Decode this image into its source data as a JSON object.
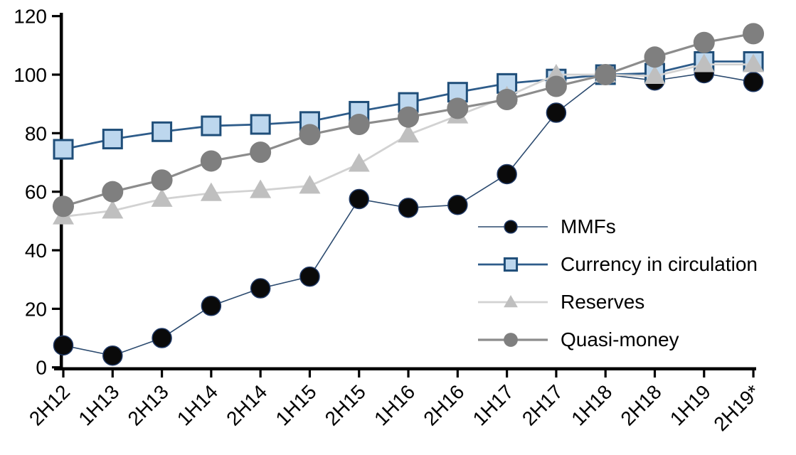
{
  "chart_data": {
    "type": "line",
    "title": "",
    "xlabel": "",
    "ylabel": "",
    "categories": [
      "2H12",
      "1H13",
      "2H13",
      "1H14",
      "2H14",
      "1H15",
      "2H15",
      "1H16",
      "2H16",
      "1H17",
      "2H17",
      "1H18",
      "2H18",
      "1H19",
      "2H19*"
    ],
    "series": [
      {
        "name": "MMFs",
        "marker": "circle",
        "values": [
          7.5,
          4,
          10,
          21,
          27,
          31,
          57.5,
          54.5,
          55.5,
          66,
          87,
          100,
          98,
          100.5,
          97.5
        ],
        "line_color": "#2b4a6f",
        "line_width": 1.6,
        "marker_fill": "#0a0a0a",
        "marker_stroke": "#1f3864",
        "marker_stroke_width": 1.5,
        "marker_size": 27
      },
      {
        "name": "Currency in circulation",
        "marker": "square",
        "values": [
          74.5,
          78,
          80.5,
          82.5,
          83,
          84,
          87.5,
          90.5,
          94,
          97,
          98.5,
          100,
          100.5,
          104.5,
          104.5
        ],
        "line_color": "#2e5c8a",
        "line_width": 2.8,
        "marker_fill": "#bdd7ee",
        "marker_stroke": "#1f4e79",
        "marker_stroke_width": 3,
        "marker_size": 26
      },
      {
        "name": "Reserves",
        "marker": "triangle",
        "values": [
          51.5,
          53.5,
          57.5,
          59.5,
          60.5,
          62,
          69.5,
          79.5,
          86,
          92.5,
          100,
          100,
          99.5,
          103.5,
          103.5
        ],
        "line_color": "#d2d2d2",
        "line_width": 2.8,
        "marker_fill": "#bfbfbf",
        "marker_stroke": "none",
        "marker_stroke_width": 0,
        "marker_size": 30
      },
      {
        "name": "Quasi-money",
        "marker": "circle",
        "values": [
          55,
          60,
          64,
          70.5,
          73.5,
          79.5,
          83,
          85.5,
          88.5,
          91.5,
          96,
          100,
          106,
          111,
          114
        ],
        "line_color": "#8c8c8c",
        "line_width": 3.2,
        "marker_fill": "#7f7f7f",
        "marker_stroke": "none",
        "marker_stroke_width": 0,
        "marker_size": 30
      }
    ],
    "y_ticks": [
      0,
      20,
      40,
      60,
      80,
      100,
      120
    ],
    "ylim": [
      0,
      120
    ],
    "grid": false,
    "legend_position": "middle-right",
    "axis_color": "#000000",
    "tick_label_color": "#000000",
    "tick_font_size": 28,
    "x_label_rotation": -45
  }
}
